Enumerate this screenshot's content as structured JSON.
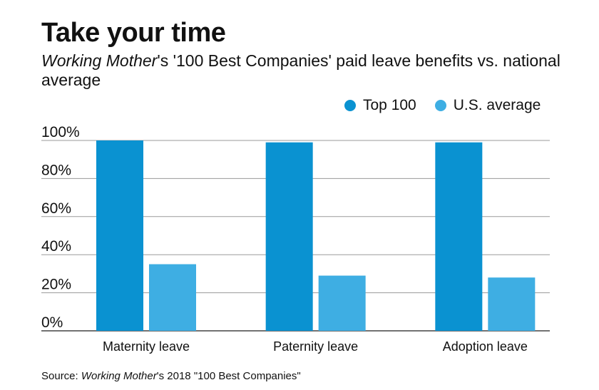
{
  "header": {
    "title": "Take your time",
    "subtitle_italic": "Working Mother",
    "subtitle_rest": "'s '100 Best Companies' paid leave benefits vs. national average"
  },
  "legend": {
    "items": [
      {
        "label": "Top 100",
        "color": "#0a92d1"
      },
      {
        "label": "U.S. average",
        "color": "#3eaee3"
      }
    ]
  },
  "chart_data": {
    "type": "bar",
    "categories": [
      "Maternity leave",
      "Paternity leave",
      "Adoption leave"
    ],
    "series": [
      {
        "name": "Top 100",
        "values": [
          100,
          99,
          99
        ],
        "color": "#0a92d1"
      },
      {
        "name": "U.S. average",
        "values": [
          35,
          29,
          28
        ],
        "color": "#3eaee3"
      }
    ],
    "yticks": [
      "0%",
      "20%",
      "40%",
      "60%",
      "80%",
      "100%"
    ],
    "ylim": [
      0,
      100
    ],
    "grid": true,
    "legend_position": "top-right"
  },
  "footer": {
    "source_prefix": "Source: ",
    "source_italic": "Working Mother",
    "source_rest": "'s 2018 \"100 Best Companies\""
  }
}
